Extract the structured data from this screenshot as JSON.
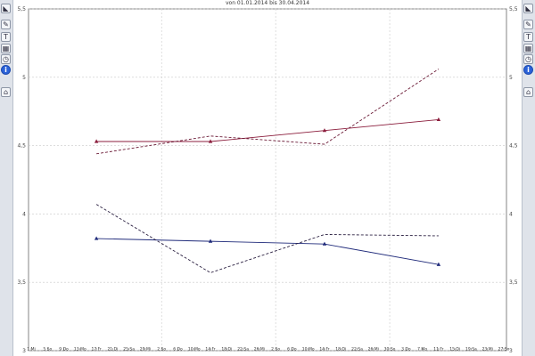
{
  "header": {
    "title": "von 01.01.2014 bis 30.04.2014"
  },
  "toolbar": {
    "left": [
      "ruler-icon",
      "pencil-icon",
      "text-icon",
      "grid-icon",
      "clock-icon",
      "info-icon",
      "folder-icon"
    ],
    "right": [
      "ruler-icon",
      "pencil-icon",
      "text-icon",
      "grid-icon",
      "clock-icon",
      "info-icon",
      "folder-icon"
    ]
  },
  "chart_data": {
    "type": "line",
    "title": "",
    "xlabel": "",
    "ylabel": "",
    "ylim": [
      3,
      5.5
    ],
    "yticks": [
      3,
      3.5,
      4,
      4.5,
      5,
      5.5
    ],
    "ytick_labels": [
      "3",
      "3,5",
      "4",
      "4,5",
      "5",
      "5,5"
    ],
    "grid": true,
    "x_tick_labels": [
      "1 Mi",
      "5 So",
      "9 Do",
      "13 Mo",
      "17 Fr",
      "21 Di",
      "25 Sa",
      "29 Mi",
      "2 So",
      "6 Do",
      "10 Mo",
      "14 Fr",
      "18 Di",
      "22 Sa",
      "26 Mi",
      "2 So",
      "6 Do",
      "10 Mo",
      "14 Fr",
      "18 Di",
      "22 Sa",
      "26 Mi",
      "30 So",
      "3 Do",
      "7 Mo",
      "11 Fr",
      "15 Di",
      "19 Sa",
      "23 Mi",
      "27 So"
    ],
    "x_tick_index": [
      0,
      1,
      2,
      3,
      4,
      5,
      6,
      7,
      8,
      9,
      10,
      11,
      12,
      13,
      14,
      15,
      16,
      17,
      18,
      19,
      20,
      21,
      22,
      23,
      24,
      25,
      26,
      27,
      28,
      29
    ],
    "series": [
      {
        "color": "#8b1d3c",
        "style": "solid",
        "marker": "triangle",
        "x": [
          4,
          11,
          18,
          25
        ],
        "y": [
          4.53,
          4.53,
          4.61,
          4.69
        ]
      },
      {
        "color": "#6b1a36",
        "style": "dashed",
        "marker": "none",
        "x": [
          4,
          11,
          18,
          25
        ],
        "y": [
          4.44,
          4.57,
          4.51,
          5.06
        ]
      },
      {
        "color": "#1f2a7a",
        "style": "solid",
        "marker": "triangle",
        "x": [
          4,
          11,
          18,
          25
        ],
        "y": [
          3.82,
          3.8,
          3.78,
          3.63
        ]
      },
      {
        "color": "#2a1f40",
        "style": "dashed",
        "marker": "none",
        "x": [
          4,
          11,
          18,
          25
        ],
        "y": [
          4.07,
          3.57,
          3.85,
          3.84
        ]
      }
    ]
  }
}
